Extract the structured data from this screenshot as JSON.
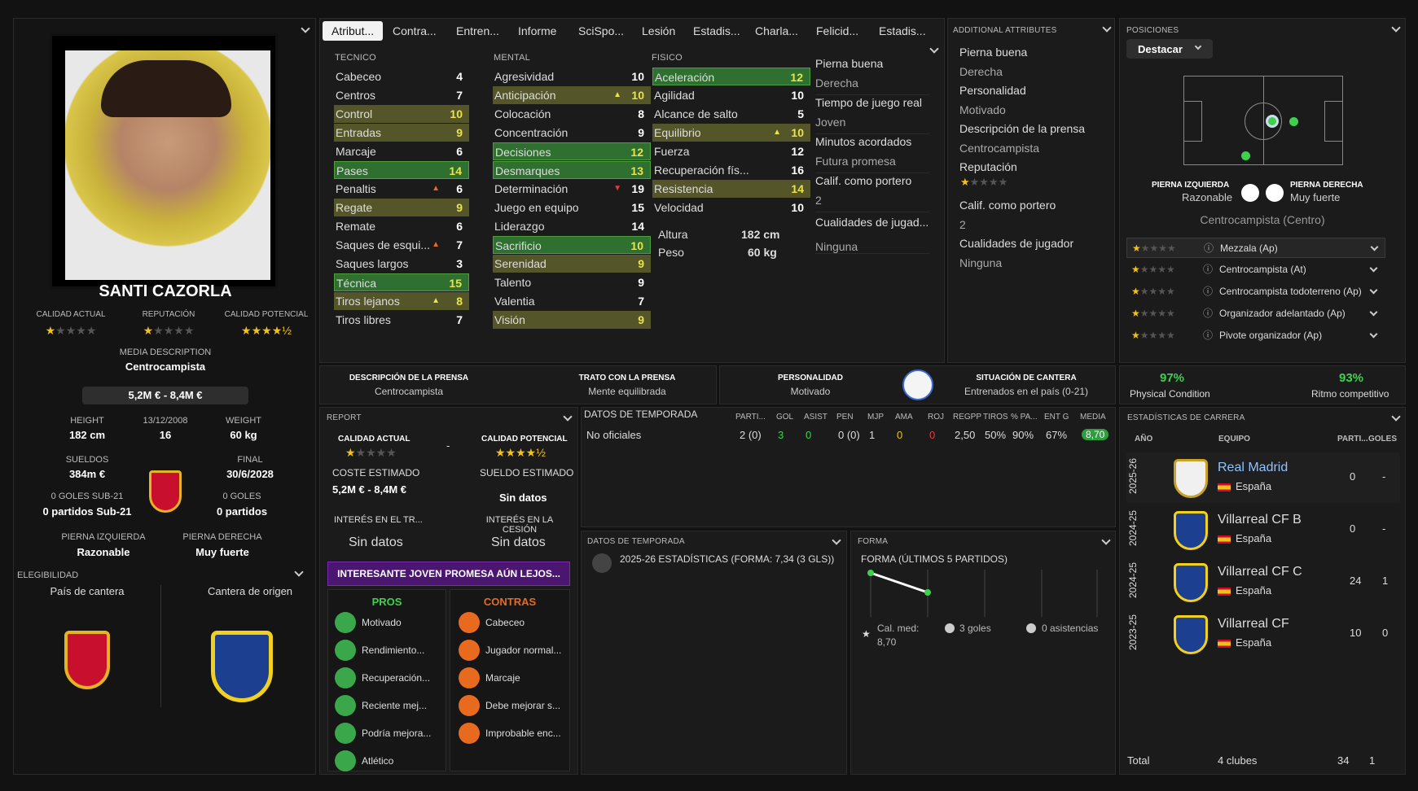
{
  "player": {
    "name": "SANTI CAZORLA",
    "ca_label": "CALIDAD ACTUAL",
    "rep_label": "REPUTACIÓN",
    "pa_label": "CALIDAD POTENCIAL",
    "ca_stars": 1,
    "rep_stars": 1,
    "pa_stars": 4.5,
    "media_desc_label": "MEDIA DESCRIPTION",
    "media_desc": "Centrocampista",
    "value": "5,2M € - 8,4M €",
    "height_label": "HEIGHT",
    "height": "182 cm",
    "dob": "13/12/2008",
    "age": "16",
    "weight_label": "WEIGHT",
    "weight": "60 kg",
    "wages_label": "SUELDOS",
    "wages": "384m €",
    "final_label": "FINAL",
    "final": "30/6/2028",
    "u21_goals": "0 GOLES SUB-21",
    "u21_apps": "0 partidos Sub-21",
    "goals": "0 GOLES",
    "apps": "0 partidos",
    "left_foot_label": "PIERNA IZQUIERDA",
    "left_foot": "Razonable",
    "right_foot_label": "PIERNA DERECHA",
    "right_foot": "Muy fuerte",
    "eligibility": "ELEGIBILIDAD",
    "country_label": "País de cantera",
    "club_label": "Cantera de origen"
  },
  "tabs": [
    "Atribut...",
    "Contra...",
    "Entren...",
    "Informe",
    "SciSpo...",
    "Lesión",
    "Estadis...",
    "Charla...",
    "Felicid...",
    "Estadis..."
  ],
  "attributes": {
    "tech_title": "TECNICO",
    "mental_title": "MENTAL",
    "phys_title": "FISICO",
    "technical": [
      {
        "n": "Cabeceo",
        "v": "4"
      },
      {
        "n": "Centros",
        "v": "7"
      },
      {
        "n": "Control",
        "v": "10",
        "h": "o"
      },
      {
        "n": "Entradas",
        "v": "9",
        "h": "o"
      },
      {
        "n": "Marcaje",
        "v": "6"
      },
      {
        "n": "Pases",
        "v": "14",
        "h": "g"
      },
      {
        "n": "Penaltis",
        "v": "6",
        "a": "up"
      },
      {
        "n": "Regate",
        "v": "9",
        "h": "o"
      },
      {
        "n": "Remate",
        "v": "6"
      },
      {
        "n": "Saques de esqui...",
        "v": "7",
        "a": "up"
      },
      {
        "n": "Saques largos",
        "v": "3"
      },
      {
        "n": "Técnica",
        "v": "15",
        "h": "g"
      },
      {
        "n": "Tiros lejanos",
        "v": "8",
        "h": "o",
        "a": "y"
      },
      {
        "n": "Tiros libres",
        "v": "7"
      }
    ],
    "mental": [
      {
        "n": "Agresividad",
        "v": "10"
      },
      {
        "n": "Anticipación",
        "v": "10",
        "h": "o",
        "a": "y"
      },
      {
        "n": "Colocación",
        "v": "8"
      },
      {
        "n": "Concentración",
        "v": "9"
      },
      {
        "n": "Decisiones",
        "v": "12",
        "h": "g"
      },
      {
        "n": "Desmarques",
        "v": "13",
        "h": "g"
      },
      {
        "n": "Determinación",
        "v": "19",
        "a": "down"
      },
      {
        "n": "Juego en equipo",
        "v": "15"
      },
      {
        "n": "Liderazgo",
        "v": "14"
      },
      {
        "n": "Sacrificio",
        "v": "10",
        "h": "g"
      },
      {
        "n": "Serenidad",
        "v": "9",
        "h": "o"
      },
      {
        "n": "Talento",
        "v": "9"
      },
      {
        "n": "Valentia",
        "v": "7"
      },
      {
        "n": "Visión",
        "v": "9",
        "h": "o"
      }
    ],
    "physical": [
      {
        "n": "Aceleración",
        "v": "12",
        "h": "g"
      },
      {
        "n": "Agilidad",
        "v": "10"
      },
      {
        "n": "Alcance de salto",
        "v": "5"
      },
      {
        "n": "Equilibrio",
        "v": "10",
        "h": "o",
        "a": "y"
      },
      {
        "n": "Fuerza",
        "v": "12"
      },
      {
        "n": "Recuperación fís...",
        "v": "16"
      },
      {
        "n": "Resistencia",
        "v": "14",
        "h": "o"
      },
      {
        "n": "Velocidad",
        "v": "10"
      }
    ],
    "altura_label": "Altura",
    "altura": "182 cm",
    "peso_label": "Peso",
    "peso": "60 kg",
    "extra": [
      "Pierna buena",
      "Derecha",
      "Tiempo de juego real",
      "Joven",
      "Minutos acordados",
      "Futura promesa",
      "Calif. como portero",
      "2",
      "Cualidades de jugad...",
      "Ninguna"
    ]
  },
  "additional": {
    "title": "ADDITIONAL ATTRIBUTES",
    "items": [
      "Pierna buena",
      "Derecha",
      "Personalidad",
      "Motivado",
      "Descripción de la prensa",
      "Centrocampista",
      "Reputación",
      "",
      "Calif. como portero",
      "2",
      "Cualidades de jugador",
      "Ninguna"
    ]
  },
  "positions": {
    "title": "POSICIONES",
    "dropdown": "Destacar",
    "lf_label": "PIERNA IZQUIERDA",
    "lf": "Razonable",
    "rf_label": "PIERNA DERECHA",
    "rf": "Muy fuerte",
    "main": "Centrocampista (Centro)",
    "roles": [
      "Mezzala (Ap)",
      "Centrocampista (At)",
      "Centrocampista todoterreno (Ap)",
      "Organizador adelantado (Ap)",
      "Pivote organizador (Ap)"
    ]
  },
  "press": {
    "l1": "DESCRIPCIÓN DE LA PRENSA",
    "v1": "Centrocampista",
    "l2": "TRATO CON LA PRENSA",
    "v2": "Mente equilibrada",
    "l3": "PERSONALIDAD",
    "v3": "Motivado",
    "l4": "SITUACIÓN DE CANTERA",
    "v4": "Entrenados en el país (0-21)"
  },
  "condition": {
    "pc": "97%",
    "pc_label": "Physical Condition",
    "mf": "93%",
    "mf_label": "Ritmo competitivo"
  },
  "report": {
    "title": "REPORT",
    "ca": "CALIDAD ACTUAL",
    "pa": "CALIDAD POTENCIAL",
    "dash": "-",
    "cost_label": "COSTE ESTIMADO",
    "cost": "5,2M € - 8,4M €",
    "wage_label": "SUELDO ESTIMADO",
    "wage": "Sin datos",
    "int_tr": "INTERÉS EN EL TR...",
    "int_tr_v": "Sin datos",
    "int_ces": "INTERÉS EN LA CESIÓN",
    "int_ces_v": "Sin datos",
    "banner": "INTERESANTE JOVEN PROMESA AÚN LEJOS...",
    "pros_title": "PROS",
    "cons_title": "CONTRAS",
    "pros": [
      "Motivado",
      "Rendimiento...",
      "Recuperación...",
      "Reciente mej...",
      "Podría mejora...",
      "Atlético"
    ],
    "cons": [
      "Cabeceo",
      "Jugador normal...",
      "Marcaje",
      "Debe mejorar s...",
      "Improbable enc..."
    ]
  },
  "season": {
    "title": "DATOS DE TEMPORADA",
    "cols": [
      "PARTI...",
      "GOL",
      "ASIST",
      "PEN",
      "MJP",
      "AMA",
      "ROJ",
      "REGPP",
      "TIROS",
      "% PA...",
      "ENT G",
      "MEDIA"
    ],
    "row_label": "No oficiales",
    "row": [
      "2 (0)",
      "3",
      "0",
      "0 (0)",
      "1",
      "0",
      "0",
      "2,50",
      "50%",
      "90%",
      "67%",
      "8,70"
    ]
  },
  "season2": {
    "title": "DATOS DE TEMPORADA",
    "line": "2025-26 ESTADÍSTICAS (FORMA: 7,34 (3 GLS))"
  },
  "form": {
    "title": "FORMA",
    "sub": "FORMA (ÚLTIMOS 5 PARTIDOS)",
    "avg_label": "Cal. med:",
    "avg": "8,70",
    "goals": "3 goles",
    "assists": "0 asistencias",
    "points": [
      8.9,
      8.5
    ]
  },
  "career": {
    "title": "ESTADÍSTICAS DE CARRERA",
    "h_year": "AÑO",
    "h_team": "EQUIPO",
    "h_apps": "PARTI...",
    "h_goals": "GOLES",
    "rows": [
      {
        "year": "2025-26",
        "team": "Real Madrid",
        "country": "España",
        "apps": "0",
        "goals": "-"
      },
      {
        "year": "2024-25",
        "team": "Villarreal CF B",
        "country": "España",
        "apps": "0",
        "goals": "-"
      },
      {
        "year": "2024-25",
        "team": "Villarreal CF C",
        "country": "España",
        "apps": "24",
        "goals": "1"
      },
      {
        "year": "2023-25",
        "team": "Villarreal CF",
        "country": "España",
        "apps": "10",
        "goals": "0"
      }
    ],
    "total_label": "Total",
    "total_clubs": "4 clubes",
    "total_apps": "34",
    "total_goals": "1"
  },
  "colors": {
    "green": "#3fd14e",
    "gold": "#f2c11e",
    "purple": "#4b1670",
    "orange": "#e86a1f"
  }
}
